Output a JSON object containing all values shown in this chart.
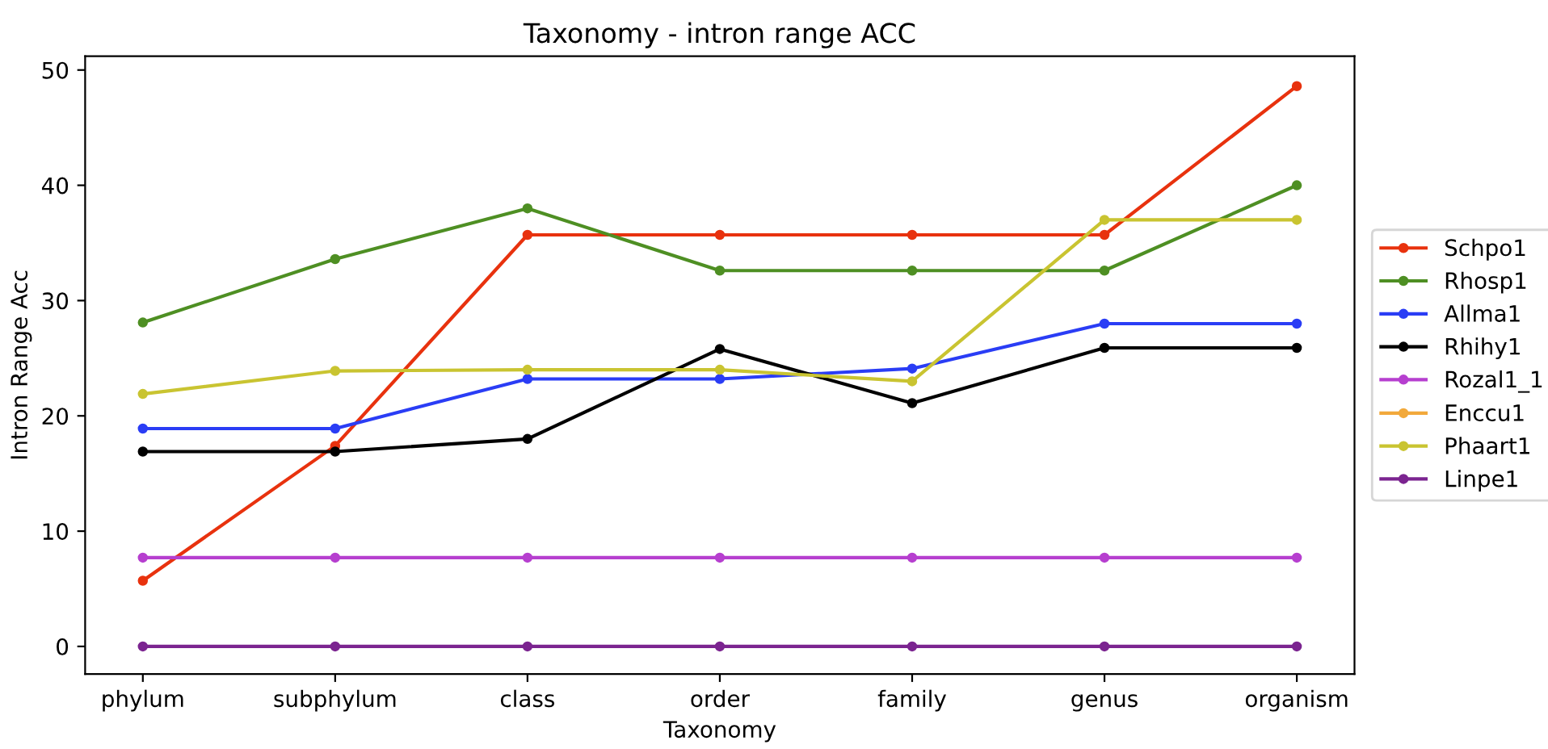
{
  "chart_data": {
    "type": "line",
    "title": "Taxonomy - intron range ACC",
    "xlabel": "Taxonomy",
    "ylabel": "Intron Range Acc",
    "categories": [
      "phylum",
      "subphylum",
      "class",
      "order",
      "family",
      "genus",
      "organism"
    ],
    "series": [
      {
        "name": "Schpo1",
        "color": "#e8320e",
        "values": [
          5.7,
          17.4,
          35.7,
          35.7,
          35.7,
          35.7,
          48.6
        ]
      },
      {
        "name": "Rhosp1",
        "color": "#4e8f23",
        "values": [
          28.1,
          33.6,
          38,
          32.6,
          32.6,
          32.6,
          40
        ]
      },
      {
        "name": "Allma1",
        "color": "#2a3df5",
        "values": [
          18.9,
          18.9,
          23.2,
          23.2,
          24.1,
          28,
          28
        ]
      },
      {
        "name": "Rhihy1",
        "color": "#000000",
        "values": [
          16.9,
          16.9,
          18,
          25.8,
          21.1,
          25.9,
          25.9
        ]
      },
      {
        "name": "Rozal1_1",
        "color": "#b63fcf",
        "values": [
          7.7,
          7.7,
          7.7,
          7.7,
          7.7,
          7.7,
          7.7
        ]
      },
      {
        "name": "Enccu1",
        "color": "#f2a93b",
        "values": [
          null,
          null,
          null,
          null,
          null,
          null,
          null
        ]
      },
      {
        "name": "Phaart1",
        "color": "#c9c431",
        "values": [
          21.9,
          23.9,
          24,
          24,
          23,
          37,
          37
        ]
      },
      {
        "name": "Linpe1",
        "color": "#7b2490",
        "values": [
          0,
          0,
          0,
          0,
          0,
          0,
          0
        ]
      }
    ],
    "ylim": [
      -2.4,
      51.2
    ],
    "yticks": [
      0,
      10,
      20,
      30,
      40,
      50
    ],
    "grid": false,
    "legend": "right",
    "marker": "circle",
    "line_style": "solid"
  }
}
